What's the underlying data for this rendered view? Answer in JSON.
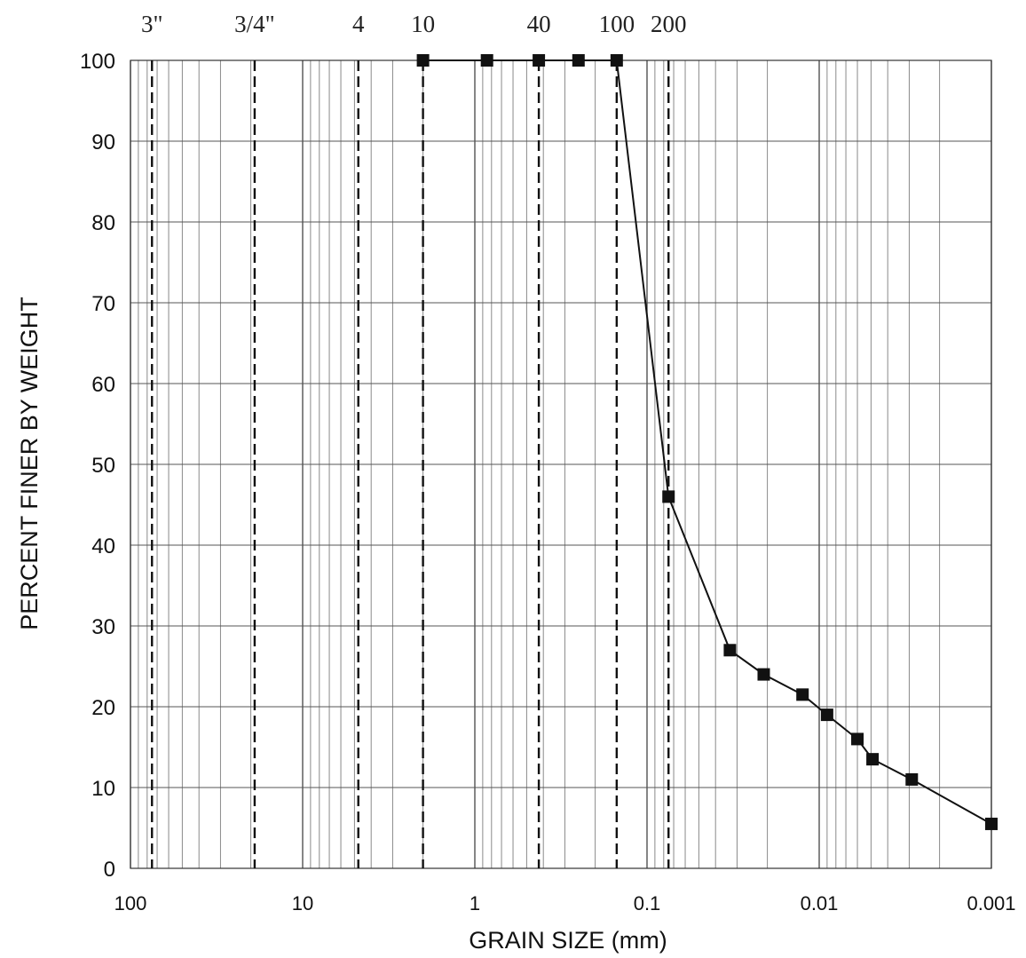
{
  "chart_data": {
    "type": "line",
    "title": "",
    "xlabel": "GRAIN SIZE (mm)",
    "ylabel": "PERCENT FINER BY WEIGHT",
    "x_scale": "log",
    "x_reversed": true,
    "xlim": [
      100,
      0.001
    ],
    "ylim": [
      0,
      100
    ],
    "x_tick_labels": [
      "100",
      "10",
      "1",
      "0.1",
      "0.01",
      "0.001"
    ],
    "x_ticks": [
      100,
      10,
      1,
      0.1,
      0.01,
      0.001
    ],
    "y_ticks": [
      0,
      10,
      20,
      30,
      40,
      50,
      60,
      70,
      80,
      90,
      100
    ],
    "y_tick_labels": [
      "0",
      "10",
      "20",
      "30",
      "40",
      "50",
      "60",
      "70",
      "80",
      "90",
      "100"
    ],
    "grid": true,
    "sieve_sizes": [
      {
        "label": "3\"",
        "size": 75
      },
      {
        "label": "3/4\"",
        "size": 19
      },
      {
        "label": "4",
        "size": 4.75
      },
      {
        "label": "10",
        "size": 2.0
      },
      {
        "label": "40",
        "size": 0.425
      },
      {
        "label": "100",
        "size": 0.15
      },
      {
        "label": "200",
        "size": 0.075
      }
    ],
    "series": [
      {
        "x": [
          2.0,
          0.85,
          0.425,
          0.25,
          0.15,
          0.075,
          0.033,
          0.021,
          0.0125,
          0.009,
          0.006,
          0.0049,
          0.0029,
          0.001
        ],
        "y": [
          100,
          100,
          100,
          100,
          100,
          46,
          27,
          24,
          21.5,
          19,
          16,
          13.5,
          11,
          5.5
        ]
      }
    ]
  }
}
